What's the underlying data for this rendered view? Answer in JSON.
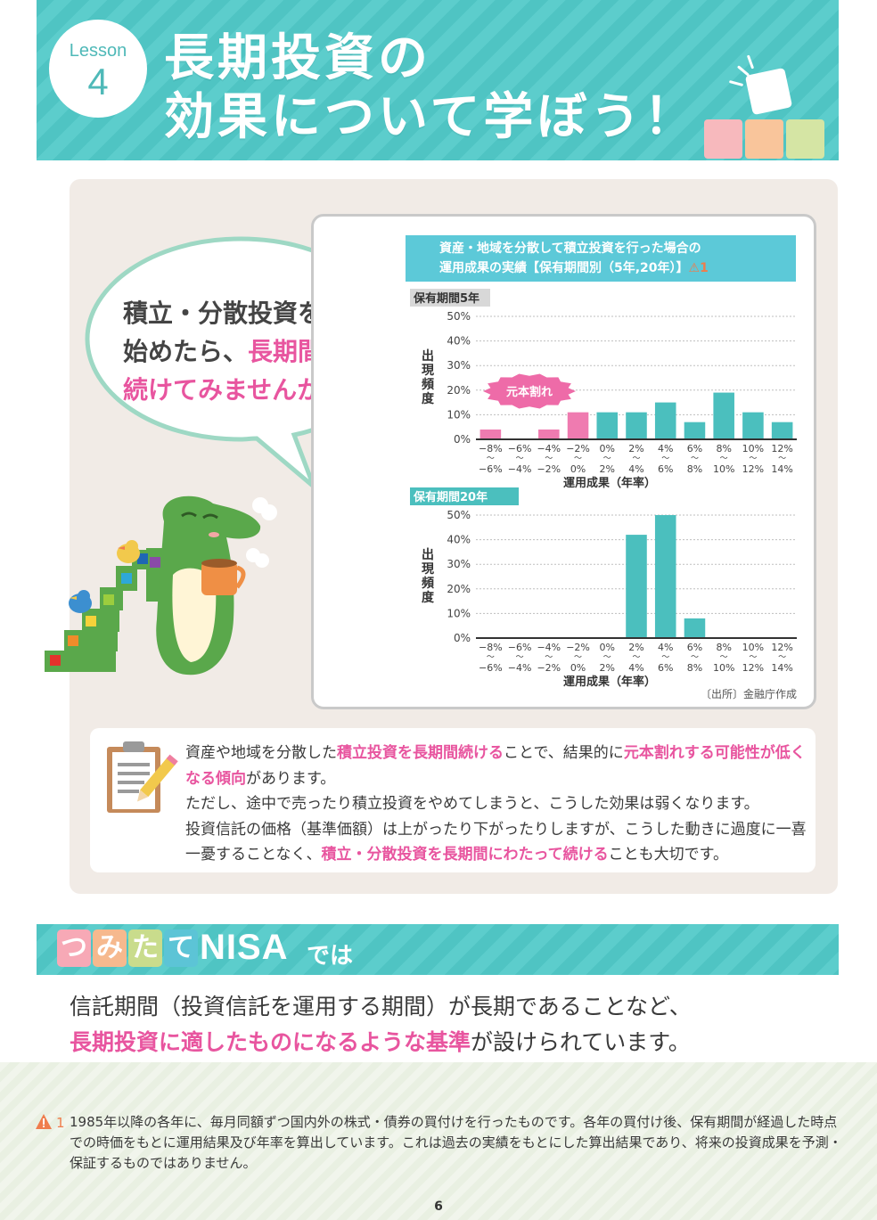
{
  "header": {
    "lesson_word": "Lesson",
    "lesson_number": "4",
    "title_line1": "長期投資の",
    "title_line2": "効果について学ぼう！",
    "colors": {
      "banner": "#4fc4c3",
      "block1": "#f7b9bd",
      "block2": "#f9c59b",
      "block3": "#d5e5a4"
    }
  },
  "speech": {
    "line1": "積立・分散投資を",
    "line2_plain": "始めたら、",
    "line2_pink": "長期間",
    "line3_pink": "続けてみませんか？"
  },
  "chart": {
    "header_line1": "資産・地域を分散して積立投資を行った場合の",
    "header_line2": "運用成果の実績【保有期間別（5年,20年）】",
    "header_note_mark": "1",
    "source": "〔出所〕金融庁作成",
    "loss_badge": "元本割れ"
  },
  "chart_data": [
    {
      "type": "bar",
      "title": "保有期間5年",
      "xlabel": "運用成果（年率）",
      "ylabel": "出現頻度",
      "ylim": [
        0,
        50
      ],
      "yticks": [
        "0%",
        "10%",
        "20%",
        "30%",
        "40%",
        "50%"
      ],
      "categories_top": [
        "−8%",
        "−6%",
        "−4%",
        "−2%",
        "0%",
        "2%",
        "4%",
        "6%",
        "8%",
        "10%",
        "12%"
      ],
      "categories_bottom": [
        "−6%",
        "−4%",
        "−2%",
        "0%",
        "2%",
        "4%",
        "6%",
        "8%",
        "10%",
        "12%",
        "14%"
      ],
      "values": [
        4,
        0,
        4,
        11,
        11,
        11,
        15,
        7,
        19,
        11,
        7
      ],
      "colors": [
        "#ef7bb0",
        "#ef7bb0",
        "#ef7bb0",
        "#ef7bb0",
        "#4bbfbe",
        "#4bbfbe",
        "#4bbfbe",
        "#4bbfbe",
        "#4bbfbe",
        "#4bbfbe",
        "#4bbfbe"
      ]
    },
    {
      "type": "bar",
      "title": "保有期間20年",
      "xlabel": "運用成果（年率）",
      "ylabel": "出現頻度",
      "ylim": [
        0,
        50
      ],
      "yticks": [
        "0%",
        "10%",
        "20%",
        "30%",
        "40%",
        "50%"
      ],
      "categories_top": [
        "−8%",
        "−6%",
        "−4%",
        "−2%",
        "0%",
        "2%",
        "4%",
        "6%",
        "8%",
        "10%",
        "12%"
      ],
      "categories_bottom": [
        "−6%",
        "−4%",
        "−2%",
        "0%",
        "2%",
        "4%",
        "6%",
        "8%",
        "10%",
        "12%",
        "14%"
      ],
      "values": [
        0,
        0,
        0,
        0,
        0,
        42,
        50,
        8,
        0,
        0,
        0
      ],
      "colors": [
        "#4bbfbe",
        "#4bbfbe",
        "#4bbfbe",
        "#4bbfbe",
        "#4bbfbe",
        "#4bbfbe",
        "#4bbfbe",
        "#4bbfbe",
        "#4bbfbe",
        "#4bbfbe",
        "#4bbfbe"
      ]
    }
  ],
  "note": {
    "p1_a": "資産や地域を分散した",
    "p1_b": "積立投資を長期間続ける",
    "p1_c": "ことで、結果的に",
    "p1_d": "元本割れする可能性が低くなる傾向",
    "p1_e": "があります。",
    "p2": "ただし、途中で売ったり積立投資をやめてしまうと、こうした効果は弱くなります。",
    "p3_a": "投資信託の価格（基準価額）は上がったり下がったりしますが、こうした動きに過度に一喜一憂することなく、",
    "p3_b": "積立・分散投資を長期間にわたって続ける",
    "p3_c": "ことも大切です。"
  },
  "nisa": {
    "tiles": [
      "つ",
      "み",
      "た",
      "て"
    ],
    "tile_colors": [
      "#f7a9b6",
      "#f6b98e",
      "#c9dc8c",
      "#5cc4d6"
    ],
    "word": "NISA",
    "suffix": "では",
    "line1": "信託期間（投資信託を運用する期間）が長期であることなど、",
    "line2_pink": "長期投資に適したものになるような基準",
    "line2_plain": "が設けられています。"
  },
  "footnote": {
    "mark": "1",
    "text": "1985年以降の各年に、毎月同額ずつ国内外の株式・債券の買付けを行ったものです。各年の買付け後、保有期間が経過した時点での時価をもとに運用結果及び年率を算出しています。これは過去の実績をもとにした算出結果であり、将来の投資成果を予測・保証するものではありません。"
  },
  "page_number": "6"
}
